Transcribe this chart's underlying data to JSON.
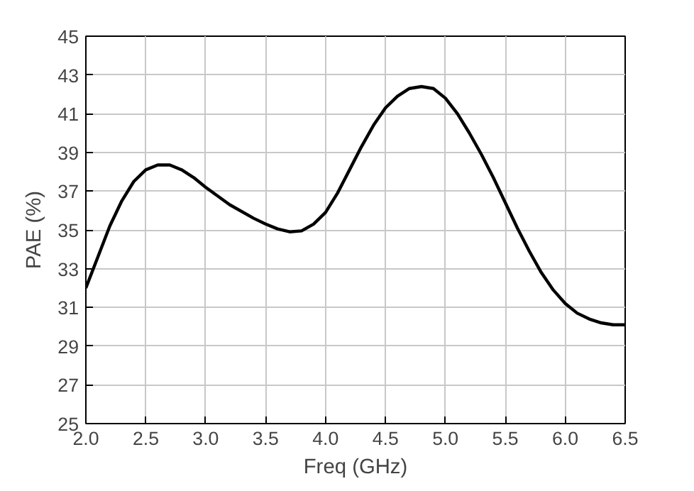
{
  "chart_data": {
    "type": "line",
    "xlabel": "Freq (GHz)",
    "ylabel": "PAE (%)",
    "xlim": [
      2.0,
      6.5
    ],
    "ylim": [
      25,
      45
    ],
    "xticks": [
      {
        "value": 2.0,
        "label": "2.0"
      },
      {
        "value": 2.5,
        "label": "2.5"
      },
      {
        "value": 3.0,
        "label": "3.0"
      },
      {
        "value": 3.5,
        "label": "3.5"
      },
      {
        "value": 4.0,
        "label": "4.0"
      },
      {
        "value": 4.5,
        "label": "4.5"
      },
      {
        "value": 5.0,
        "label": "5.0"
      },
      {
        "value": 5.5,
        "label": "5.5"
      },
      {
        "value": 6.0,
        "label": "6.0"
      },
      {
        "value": 6.5,
        "label": "6.5"
      }
    ],
    "yticks": [
      25,
      27,
      29,
      31,
      33,
      35,
      37,
      39,
      41,
      43,
      45
    ],
    "grid": true,
    "line_style": "solid",
    "x": [
      2.0,
      2.1,
      2.2,
      2.3,
      2.4,
      2.5,
      2.6,
      2.7,
      2.8,
      2.9,
      3.0,
      3.2,
      3.4,
      3.5,
      3.6,
      3.7,
      3.8,
      3.9,
      4.0,
      4.1,
      4.2,
      4.3,
      4.4,
      4.5,
      4.6,
      4.7,
      4.8,
      4.9,
      5.0,
      5.1,
      5.2,
      5.3,
      5.4,
      5.5,
      5.6,
      5.7,
      5.8,
      5.9,
      6.0,
      6.1,
      6.2,
      6.3,
      6.4,
      6.5
    ],
    "series": [
      {
        "color": "#000000",
        "values": [
          32.0,
          33.6,
          35.2,
          36.5,
          37.5,
          38.1,
          38.35,
          38.35,
          38.1,
          37.7,
          37.2,
          36.3,
          35.6,
          35.3,
          35.05,
          34.9,
          34.95,
          35.3,
          35.9,
          36.9,
          38.1,
          39.3,
          40.4,
          41.3,
          41.9,
          42.3,
          42.4,
          42.3,
          41.8,
          41.0,
          40.0,
          38.9,
          37.7,
          36.4,
          35.1,
          33.9,
          32.8,
          31.9,
          31.2,
          30.7,
          30.4,
          30.2,
          30.1,
          30.1
        ]
      }
    ]
  }
}
